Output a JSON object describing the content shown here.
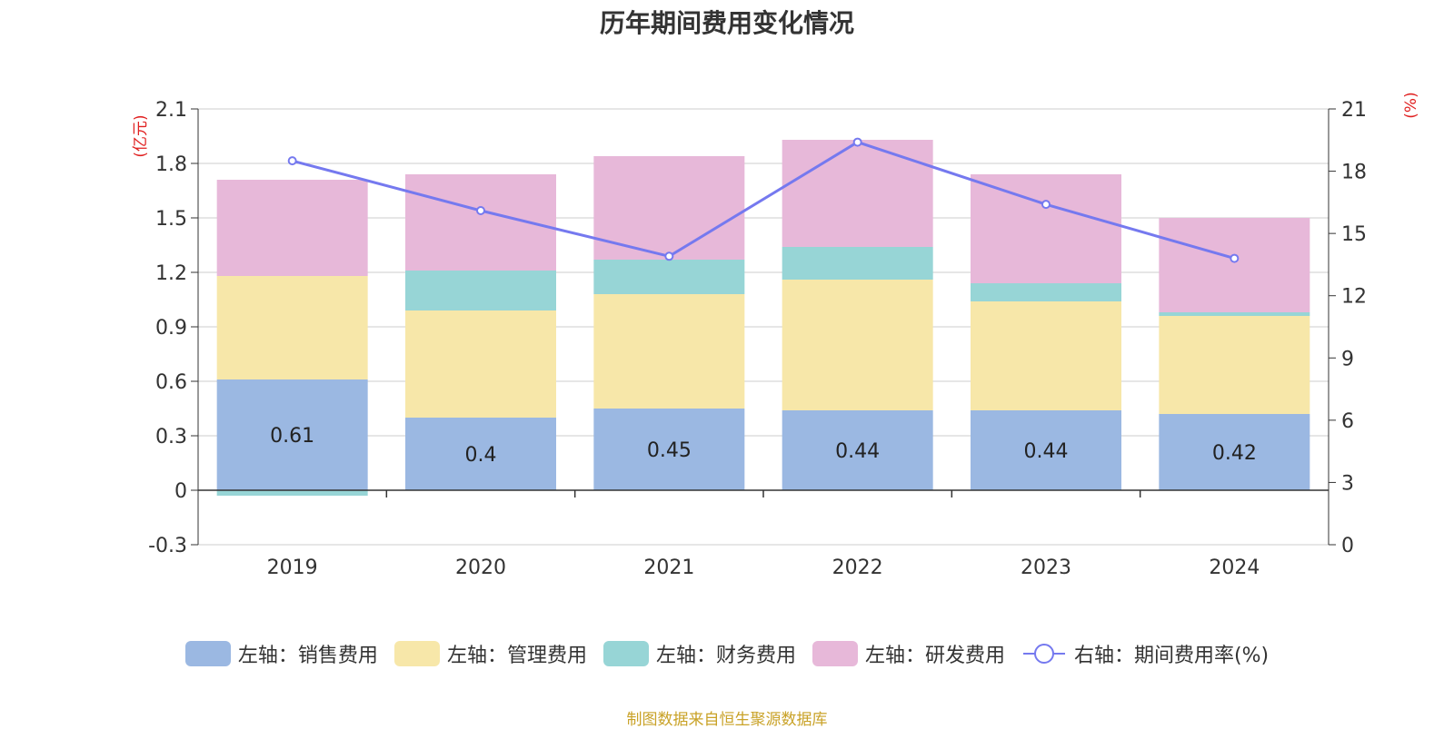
{
  "chart_data": {
    "type": "bar",
    "title": "历年期间费用变化情况",
    "categories": [
      "2019",
      "2020",
      "2021",
      "2022",
      "2023",
      "2024"
    ],
    "series": [
      {
        "name": "左轴：销售费用",
        "axis": "left",
        "type": "bar",
        "color": "#9bb8e2",
        "values": [
          0.61,
          0.4,
          0.45,
          0.44,
          0.44,
          0.42
        ],
        "labels": [
          "0.61",
          "0.4",
          "0.45",
          "0.44",
          "0.44",
          "0.42"
        ]
      },
      {
        "name": "左轴：管理费用",
        "axis": "left",
        "type": "bar",
        "color": "#f7e7a9",
        "values": [
          0.57,
          0.59,
          0.63,
          0.72,
          0.6,
          0.54
        ]
      },
      {
        "name": "左轴：财务费用",
        "axis": "left",
        "type": "bar",
        "color": "#97d5d6",
        "values": [
          -0.03,
          0.22,
          0.19,
          0.18,
          0.1,
          0.02
        ]
      },
      {
        "name": "左轴：研发费用",
        "axis": "left",
        "type": "bar",
        "color": "#e7b8d9",
        "values": [
          0.53,
          0.53,
          0.57,
          0.59,
          0.6,
          0.52
        ]
      },
      {
        "name": "右轴：期间费用率(%)",
        "axis": "right",
        "type": "line",
        "color": "#7579ef",
        "values": [
          18.5,
          16.1,
          13.9,
          19.4,
          16.4,
          13.8
        ]
      }
    ],
    "yleft": {
      "label": "(亿元)",
      "ylim": [
        -0.3,
        2.1
      ],
      "ticks": [
        "2.1",
        "1.8",
        "1.5",
        "1.2",
        "0.9",
        "0.6",
        "0.3",
        "0",
        "-0.3"
      ]
    },
    "yright": {
      "label": "(%)",
      "ylim": [
        0,
        21
      ],
      "ticks": [
        "21",
        "18",
        "15",
        "12",
        "9",
        "6",
        "3",
        "0"
      ]
    },
    "grid": true,
    "legend_position": "bottom"
  },
  "source": "制图数据来自恒生聚源数据库"
}
